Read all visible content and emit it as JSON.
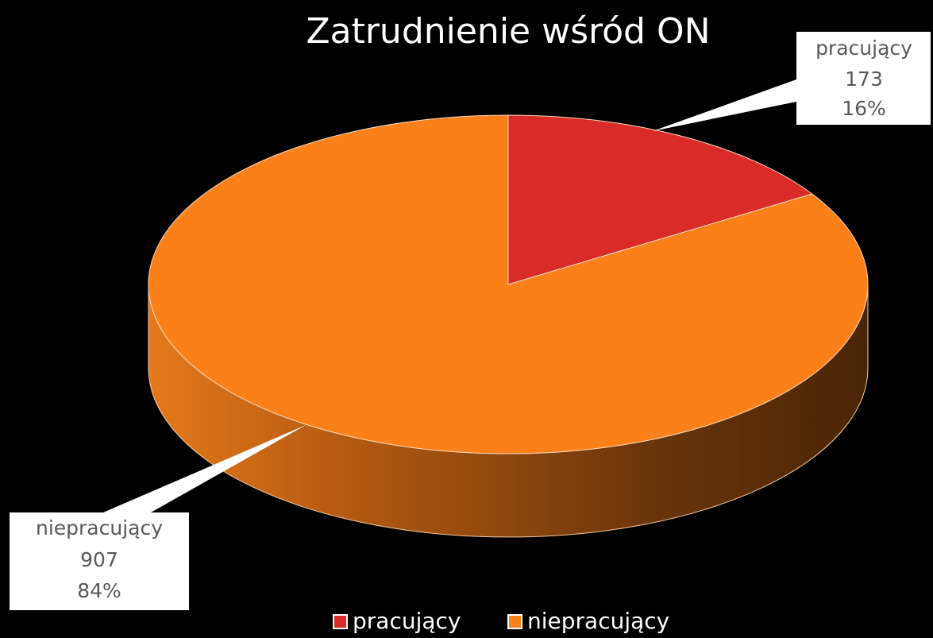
{
  "chart_data": {
    "type": "pie",
    "title": "Zatrudnienie wśród ON",
    "categories": [
      "pracujący",
      "niepracujący"
    ],
    "values": [
      173,
      907
    ],
    "percent_labels": [
      "16%",
      "84%"
    ],
    "colors": [
      "#d92b27",
      "#fb8019"
    ],
    "legend": "bottom",
    "three_d": true
  }
}
